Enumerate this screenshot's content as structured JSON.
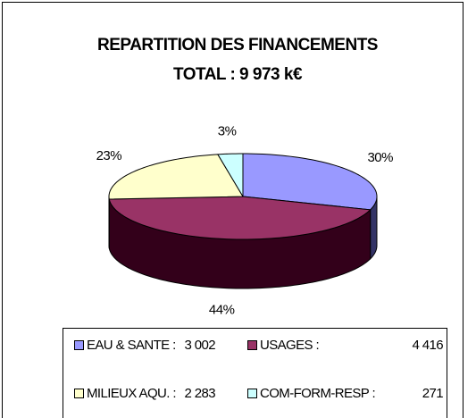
{
  "chart_data": {
    "type": "pie3d",
    "title": "REPARTITION DES FINANCEMENTS",
    "subtitle": "TOTAL : 9 973 k€",
    "categories": [
      "EAU & SANTE :",
      "USAGES :",
      "MILIEUX AQU. :",
      "COM-FORM-RESP :"
    ],
    "legend_amounts": [
      "3 002",
      "4 416",
      "2 283",
      "271"
    ],
    "values": [
      30,
      44,
      23,
      3
    ],
    "value_labels": [
      "30%",
      "44%",
      "23%",
      "3%"
    ],
    "colors": [
      "#9999ff",
      "#993366",
      "#ffffcc",
      "#ccffff"
    ],
    "side_colors": [
      "#333366",
      "#33001a",
      "#999966",
      "#669999"
    ]
  }
}
